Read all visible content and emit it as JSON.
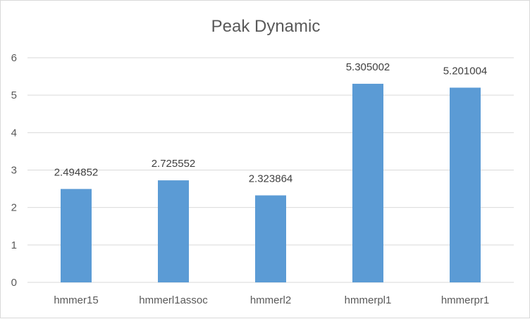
{
  "chart_data": {
    "type": "bar",
    "title": "Peak Dynamic",
    "xlabel": "",
    "ylabel": "",
    "categories": [
      "hmmer15",
      "hmmerl1assoc",
      "hmmerl2",
      "hmmerpl1",
      "hmmerpr1"
    ],
    "values": [
      2.494852,
      2.725552,
      2.323864,
      5.305002,
      5.201004
    ],
    "data_labels": [
      "2.494852",
      "2.725552",
      "2.323864",
      "5.305002",
      "5.201004"
    ],
    "ylim": [
      0,
      6
    ],
    "yticks": [
      "0",
      "1",
      "2",
      "3",
      "4",
      "5",
      "6"
    ],
    "grid": true,
    "legend": "none",
    "bar_color": "#5b9bd5",
    "grid_color": "#d9d9d9"
  }
}
